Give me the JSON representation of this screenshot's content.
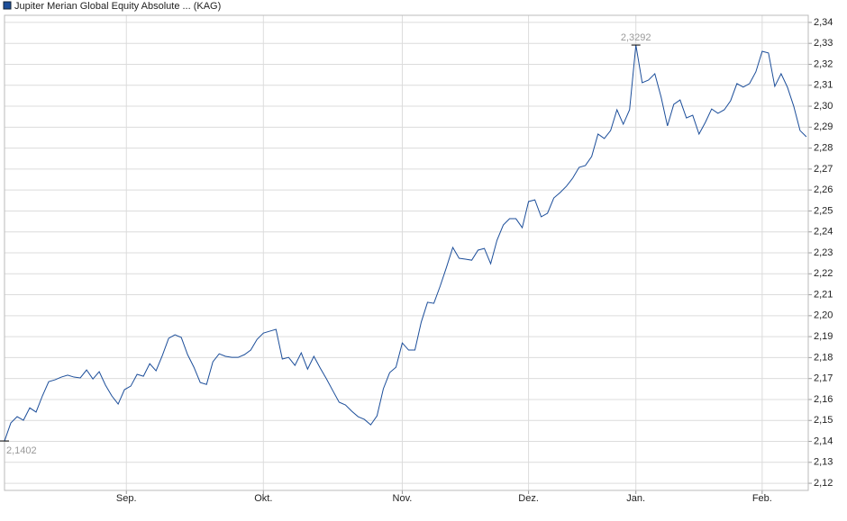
{
  "chart_data": {
    "type": "line",
    "x": [
      0,
      1,
      2,
      3,
      4,
      5,
      6,
      7,
      8,
      9,
      10,
      11,
      12,
      13,
      14,
      15,
      16,
      17,
      18,
      19,
      20,
      21,
      22,
      23,
      24,
      25,
      26,
      27,
      28,
      29,
      30,
      31,
      32,
      33,
      34,
      35,
      36,
      37,
      38,
      39,
      40,
      41,
      42,
      43,
      44,
      45,
      46,
      47,
      48,
      49,
      50,
      51,
      52,
      53,
      54,
      55,
      56,
      57,
      58,
      59,
      60,
      61,
      62,
      63,
      64,
      65,
      66,
      67,
      68,
      69,
      70,
      71,
      72,
      73,
      74,
      75,
      76,
      77,
      78,
      79,
      80,
      81,
      82,
      83,
      84,
      85,
      86,
      87,
      88,
      89,
      90,
      91,
      92,
      93,
      94,
      95,
      96,
      97,
      98,
      99,
      100,
      101,
      102,
      103,
      104,
      105,
      106,
      107,
      108,
      109,
      110,
      111,
      112,
      113,
      114,
      115,
      116,
      117,
      118,
      119,
      120,
      121,
      122,
      123,
      124,
      125,
      126,
      127
    ],
    "series": [
      {
        "name": "Jupiter Merian Global Equity Absolute ... (KAG)",
        "color": "#1c4e9a",
        "values": [
          2.1402,
          2.1488,
          2.1518,
          2.1501,
          2.156,
          2.154,
          2.1617,
          2.1685,
          2.1694,
          2.1707,
          2.1716,
          2.1707,
          2.1703,
          2.1741,
          2.1698,
          2.1733,
          2.1668,
          2.1617,
          2.1578,
          2.1647,
          2.1664,
          2.172,
          2.1711,
          2.1771,
          2.1737,
          2.181,
          2.1892,
          2.1909,
          2.1896,
          2.1814,
          2.1754,
          2.1681,
          2.1672,
          2.178,
          2.1818,
          2.1806,
          2.1801,
          2.1801,
          2.1814,
          2.1836,
          2.1887,
          2.1917,
          2.1926,
          2.1935,
          2.1793,
          2.1801,
          2.1763,
          2.1823,
          2.1745,
          2.1806,
          2.175,
          2.1698,
          2.1642,
          2.1587,
          2.1574,
          2.1544,
          2.1518,
          2.1505,
          2.1479,
          2.1522,
          2.1651,
          2.1728,
          2.1754,
          2.187,
          2.1836,
          2.1836,
          2.1969,
          2.2064,
          2.2059,
          2.2141,
          2.2231,
          2.2326,
          2.2274,
          2.227,
          2.2265,
          2.2313,
          2.2321,
          2.2248,
          2.236,
          2.2433,
          2.2463,
          2.2463,
          2.242,
          2.2545,
          2.2553,
          2.2472,
          2.2489,
          2.2562,
          2.2588,
          2.2618,
          2.2657,
          2.2708,
          2.2717,
          2.276,
          2.2867,
          2.2846,
          2.2884,
          2.2983,
          2.2914,
          2.2983,
          2.3292,
          2.3112,
          2.3125,
          2.3155,
          2.3043,
          2.2906,
          2.3009,
          2.303,
          2.2944,
          2.2957,
          2.2867,
          2.2923,
          2.2987,
          2.2966,
          2.2983,
          2.3026,
          2.3108,
          2.3091,
          2.3108,
          2.3164,
          2.3262,
          2.3254,
          2.3095,
          2.3155,
          2.3091,
          2.3,
          2.2884,
          2.2854
        ]
      }
    ],
    "annotations": [
      {
        "label": "2,1402",
        "x": 0,
        "y": 2.1402
      },
      {
        "label": "2,3292",
        "x": 100,
        "y": 2.3292
      }
    ],
    "xlim": [
      0,
      127.3
    ],
    "xticks": [
      {
        "value": 19.3,
        "label": "Sep."
      },
      {
        "value": 41,
        "label": "Okt."
      },
      {
        "value": 63,
        "label": "Nov."
      },
      {
        "value": 83,
        "label": "Dez."
      },
      {
        "value": 100,
        "label": "Jan."
      },
      {
        "value": 120,
        "label": "Feb."
      }
    ],
    "ylim": [
      2.1166,
      2.3434
    ],
    "yticks": [
      {
        "value": 2.12,
        "label": "2,12"
      },
      {
        "value": 2.13,
        "label": "2,13"
      },
      {
        "value": 2.14,
        "label": "2,14"
      },
      {
        "value": 2.15,
        "label": "2,15"
      },
      {
        "value": 2.16,
        "label": "2,16"
      },
      {
        "value": 2.17,
        "label": "2,17"
      },
      {
        "value": 2.18,
        "label": "2,18"
      },
      {
        "value": 2.19,
        "label": "2,19"
      },
      {
        "value": 2.2,
        "label": "2,20"
      },
      {
        "value": 2.21,
        "label": "2,21"
      },
      {
        "value": 2.22,
        "label": "2,22"
      },
      {
        "value": 2.23,
        "label": "2,23"
      },
      {
        "value": 2.24,
        "label": "2,24"
      },
      {
        "value": 2.25,
        "label": "2,25"
      },
      {
        "value": 2.26,
        "label": "2,26"
      },
      {
        "value": 2.27,
        "label": "2,27"
      },
      {
        "value": 2.28,
        "label": "2,28"
      },
      {
        "value": 2.29,
        "label": "2,29"
      },
      {
        "value": 2.3,
        "label": "2,30"
      },
      {
        "value": 2.31,
        "label": "2,31"
      },
      {
        "value": 2.32,
        "label": "2,32"
      },
      {
        "value": 2.33,
        "label": "2,33"
      },
      {
        "value": 2.34,
        "label": "2,34"
      }
    ],
    "grid": true
  }
}
